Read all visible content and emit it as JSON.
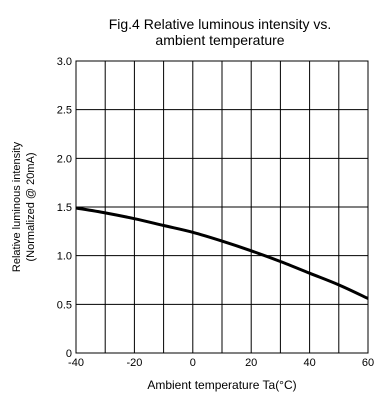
{
  "chart_data": {
    "type": "line",
    "title": [
      "Fig.4 Relative luminous intensity vs.",
      "ambient temperature"
    ],
    "xlabel": "Ambient temperature Ta(°C)",
    "ylabel": [
      "Relative luminous intensity",
      "(Normalized @ 20mA)"
    ],
    "xlim": [
      -40,
      60
    ],
    "ylim": [
      0,
      3.0
    ],
    "xticks": [
      -40,
      -20,
      0,
      20,
      40,
      60
    ],
    "xticklabels": [
      "-40",
      "-20",
      "0",
      "20",
      "40",
      "60"
    ],
    "yticks": [
      0,
      0.5,
      1.0,
      1.5,
      2.0,
      2.5,
      3.0
    ],
    "yticklabels": [
      "0",
      "0.5",
      "1.0",
      "1.5",
      "2.0",
      "2.5",
      "3.0"
    ],
    "x_gridlines": [
      -40,
      -30,
      -20,
      -10,
      0,
      10,
      20,
      30,
      40,
      50,
      60
    ],
    "y_gridlines": [
      0,
      0.5,
      1.0,
      1.5,
      2.0,
      2.5,
      3.0
    ],
    "grid": true,
    "series": [
      {
        "color": "#000000",
        "x": [
          -40,
          -30,
          -20,
          -10,
          0,
          10,
          20,
          30,
          40,
          50,
          60
        ],
        "y": [
          1.49,
          1.44,
          1.38,
          1.31,
          1.24,
          1.15,
          1.05,
          0.94,
          0.82,
          0.7,
          0.56
        ]
      }
    ]
  }
}
